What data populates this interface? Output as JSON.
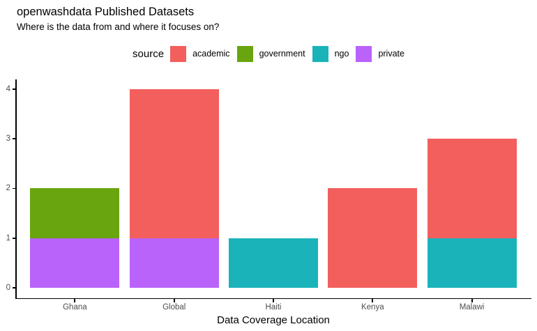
{
  "header": {
    "title": "openwashdata Published Datasets",
    "subtitle": "Where is the data from and where it focuses on?"
  },
  "chart_data": {
    "type": "bar",
    "stacked": true,
    "title": "openwashdata Published Datasets",
    "subtitle": "Where is the data from and where it focuses on?",
    "xlabel": "Data Coverage Location",
    "ylabel": "",
    "categories": [
      "Ghana",
      "Global",
      "Haiti",
      "Kenya",
      "Malawi"
    ],
    "series": [
      {
        "name": "academic",
        "color": "#F25F5C",
        "values": [
          0,
          3,
          0,
          2,
          2
        ]
      },
      {
        "name": "government",
        "color": "#68A50E",
        "values": [
          1,
          0,
          0,
          0,
          0
        ]
      },
      {
        "name": "ngo",
        "color": "#1AB3BA",
        "values": [
          0,
          0,
          1,
          0,
          1
        ]
      },
      {
        "name": "private",
        "color": "#B963FA",
        "values": [
          1,
          1,
          0,
          0,
          0
        ]
      }
    ],
    "stack_order_bottom_to_top": [
      "private",
      "ngo",
      "government",
      "academic"
    ],
    "totals_by_category": [
      2,
      4,
      1,
      2,
      3
    ],
    "ylim": [
      0,
      4
    ],
    "yticks": [
      0,
      1,
      2,
      3,
      4
    ],
    "legend_title": "source",
    "legend_position": "top",
    "grid": false
  }
}
